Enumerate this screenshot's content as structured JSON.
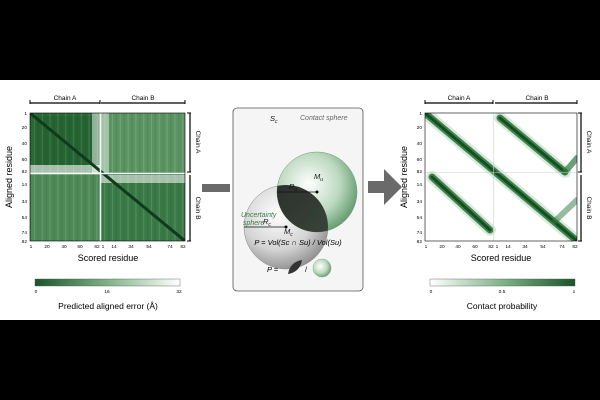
{
  "left_panel": {
    "chain_a": "Chain A",
    "chain_b": "Chain B",
    "y_label": "Aligned residue",
    "x_label": "Scored residue",
    "y_ticks": [
      "1",
      "20",
      "40",
      "60",
      "82",
      "14",
      "34",
      "54",
      "74",
      "82"
    ],
    "x_ticks": [
      "1",
      "20",
      "40",
      "60",
      "82",
      "1",
      "14",
      "34",
      "54",
      "74",
      "82"
    ],
    "colorbar_ticks": [
      "0",
      "16",
      "32"
    ],
    "colorbar_label": "Predicted aligned error (Å)"
  },
  "middle_panel": {
    "contact_sphere": "Contact sphere",
    "uncertainty_sphere_line1": "Uncertainty",
    "uncertainty_sphere_line2": "sphere",
    "sc": "S",
    "sc_sub": "c",
    "su": "S",
    "su_sub": "u",
    "rc": "R",
    "rc_sub": "c",
    "ru": "R",
    "ru_sub": "u",
    "mc": "M",
    "mc_sub": "c",
    "mu": "M",
    "mu_sub": "u",
    "formula": "P = Vol(Sc ∩ Su) / Vol(Su)",
    "p_eq": "P =",
    "slash": "/"
  },
  "right_panel": {
    "chain_a": "Chain A",
    "chain_b": "Chain B",
    "y_label": "Aligned residue",
    "x_label": "Scored residue",
    "colorbar_ticks": [
      "0",
      "0.5",
      "1"
    ],
    "colorbar_label": "Contact probability"
  },
  "colors": {
    "dark_green": "#1c5a2c",
    "mid_green": "#5f9a6c",
    "light_green": "#d9ead9",
    "arrow_gray": "#6a6a6a",
    "panel_border": "#555555",
    "panel_bg": "#f5f5f5"
  }
}
